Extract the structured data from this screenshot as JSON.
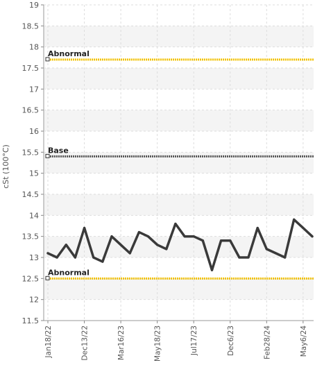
{
  "chart_data": {
    "type": "line",
    "ylabel": "cSt (100°C)",
    "ylim": [
      11.5,
      19
    ],
    "yticks": [
      "11.5",
      "12",
      "12.5",
      "13",
      "13.5",
      "14",
      "14.5",
      "15",
      "15.5",
      "16",
      "16.5",
      "17",
      "17.5",
      "18",
      "18.5",
      "19"
    ],
    "xtick_labels": [
      "Jan18/22",
      "Dec13/22",
      "Mar16/23",
      "May18/23",
      "Jul17/23",
      "Dec6/23",
      "Feb28/24",
      "May6/24"
    ],
    "xtick_index": [
      0,
      4,
      8,
      12,
      16,
      20,
      24,
      28
    ],
    "grid": true,
    "series": [
      {
        "values": [
          13.1,
          13.0,
          13.3,
          13.0,
          13.7,
          13.0,
          12.9,
          13.5,
          13.3,
          13.1,
          13.6,
          13.5,
          13.3,
          13.2,
          13.8,
          13.5,
          13.5,
          13.4,
          12.7,
          13.4,
          13.4,
          13.0,
          13.0,
          13.7,
          13.2,
          13.1,
          13.0,
          13.9,
          13.7,
          13.5
        ],
        "color": "#3a3a3a"
      }
    ],
    "reference_lines": [
      {
        "label": "Abnormal",
        "value": 17.7,
        "color": "#f2c200"
      },
      {
        "label": "Base",
        "value": 15.4,
        "color": "#555555"
      },
      {
        "label": "Abnormal",
        "value": 12.5,
        "color": "#f2c200"
      }
    ]
  }
}
